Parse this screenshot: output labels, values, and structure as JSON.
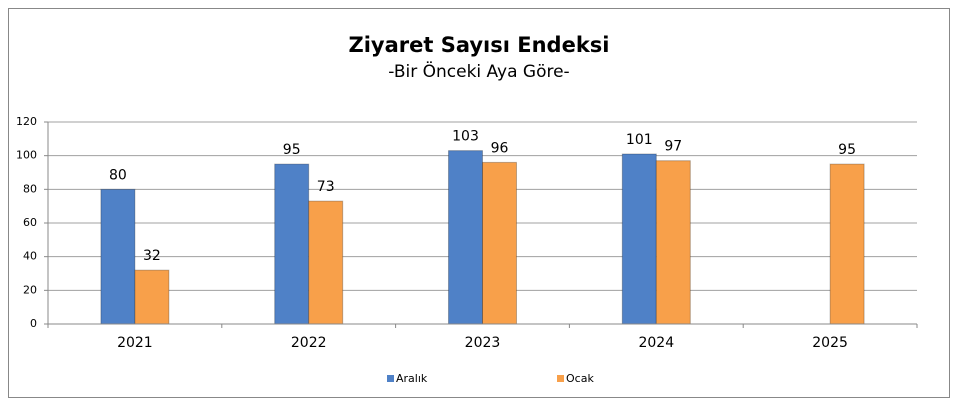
{
  "chart_data": {
    "type": "bar",
    "title": "Ziyaret Sayısı Endeksi",
    "subtitle": "-Bir Önceki Aya Göre-",
    "categories": [
      "2021",
      "2022",
      "2023",
      "2024",
      "2025"
    ],
    "series": [
      {
        "name": "Aralık",
        "color": "#4f81c7",
        "values": [
          80,
          95,
          103,
          101,
          null
        ]
      },
      {
        "name": "Ocak",
        "color": "#f8a04a",
        "values": [
          32,
          73,
          96,
          97,
          95
        ]
      }
    ],
    "ylim": [
      0,
      120
    ],
    "yticks": [
      0,
      20,
      40,
      60,
      80,
      100,
      120
    ],
    "grid": true,
    "legend": "bottom"
  }
}
